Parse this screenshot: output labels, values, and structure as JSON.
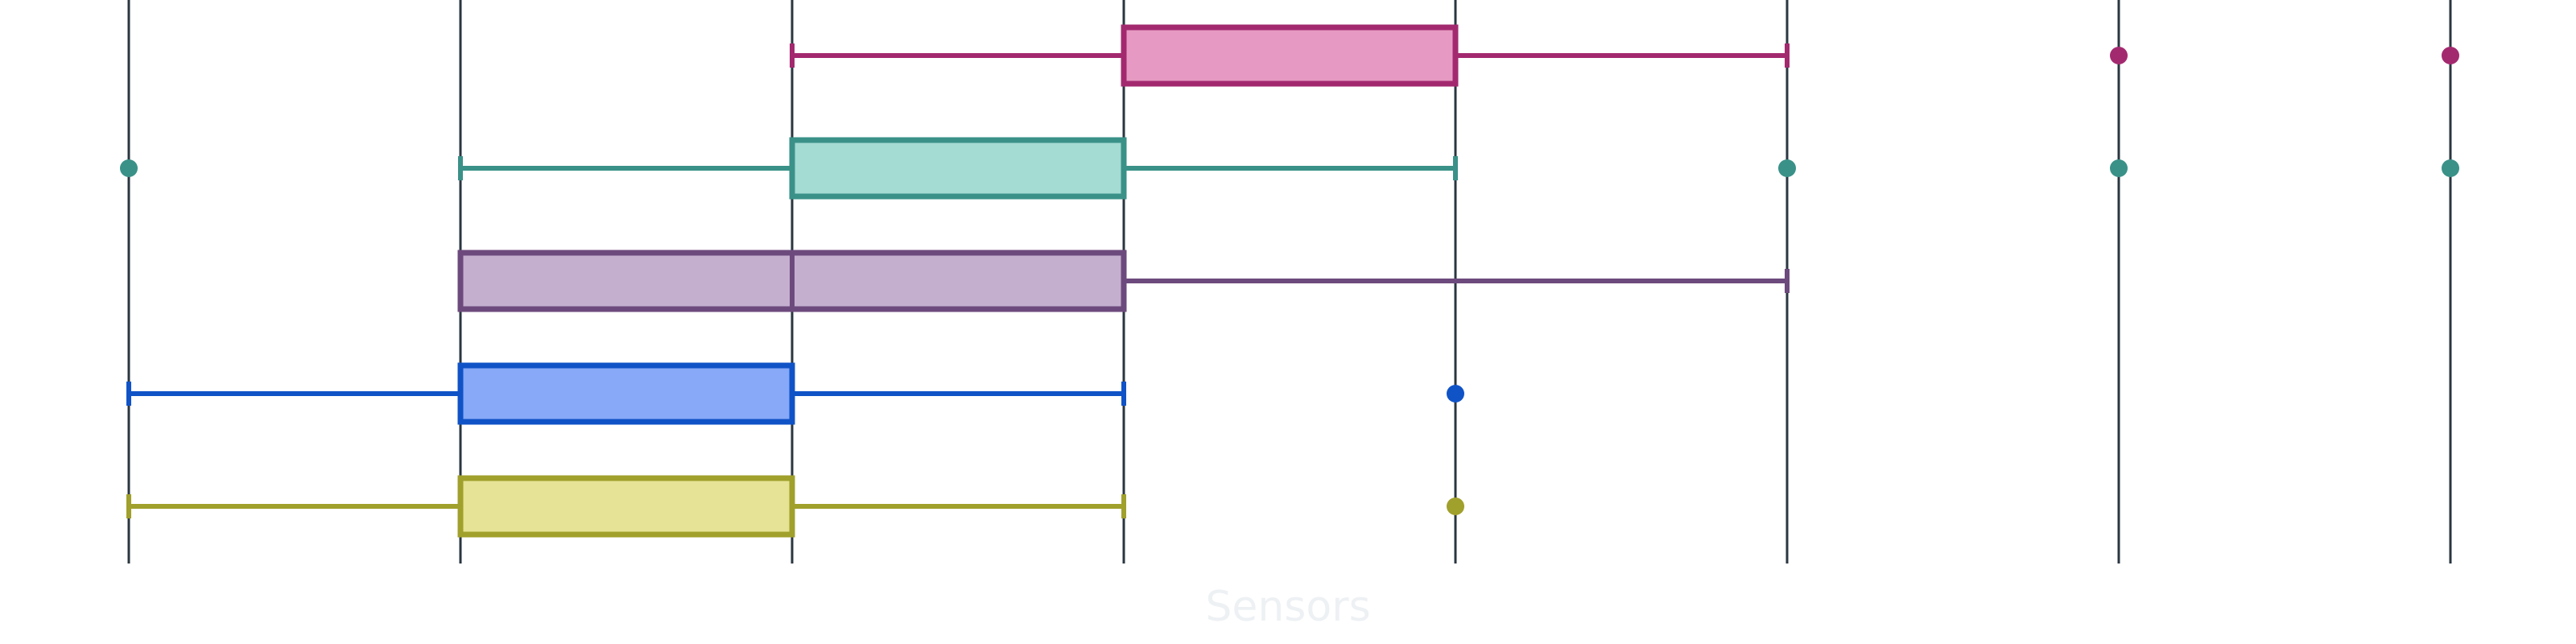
{
  "chart_data": {
    "type": "box",
    "orientation": "horizontal",
    "xlabel": "Sensors",
    "ylabel": "",
    "xlim": [
      0,
      7
    ],
    "gridlines_x": [
      0,
      1,
      2,
      3,
      4,
      5,
      6,
      7
    ],
    "grid": "vertical",
    "series": [
      {
        "color": "#a3296f",
        "fill": "#e69ac3",
        "whisker_low": 2,
        "q1": 3,
        "median": 3,
        "q3": 4,
        "whisker_high": 5,
        "outliers": [
          6,
          7
        ]
      },
      {
        "color": "#3a9188",
        "fill": "#a4dbd3",
        "whisker_low": 1,
        "q1": 2,
        "median": 2,
        "q3": 3,
        "whisker_high": 4,
        "outliers": [
          0,
          5,
          6,
          7
        ]
      },
      {
        "color": "#6d4a7d",
        "fill": "#c5afcf",
        "whisker_low": 1,
        "q1": 1,
        "median": 2,
        "q3": 3,
        "whisker_high": 5,
        "outliers": []
      },
      {
        "color": "#1053c7",
        "fill": "#87a9f7",
        "whisker_low": 0,
        "q1": 1,
        "median": 2,
        "q3": 2,
        "whisker_high": 3,
        "outliers": [
          4
        ]
      },
      {
        "color": "#a0a02c",
        "fill": "#e6e396",
        "whisker_low": 0,
        "q1": 1,
        "median": 1,
        "q3": 2,
        "whisker_high": 3,
        "outliers": [
          4
        ]
      }
    ]
  }
}
